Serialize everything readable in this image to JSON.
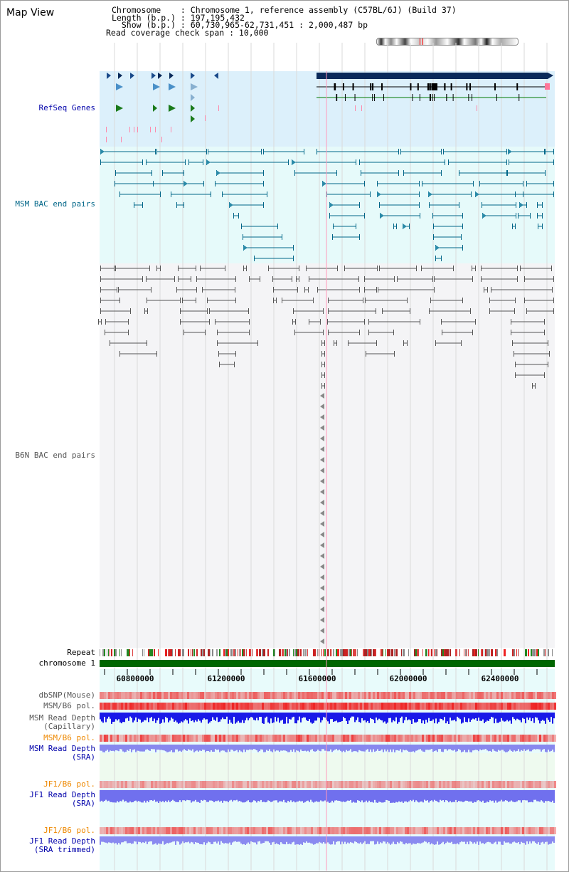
{
  "page": {
    "title": "Map View"
  },
  "header": {
    "chromosome_line": "Chromosome    : Chromosome 1, reference assembly (C57BL/6J) (Build 37)",
    "length_line": "Length (b.p.) : 197,195,432",
    "show_line": "  Show (b.p.) : 60,730,965-62,731,451 : 2,000,487 bp",
    "coverage_line": "Read coverage check span : 10,000"
  },
  "tracks": {
    "refseq": "RefSeq Genes",
    "msm_bac": "MSM BAC end pairs",
    "b6n_bac": "B6N BAC end pairs",
    "repeat": "Repeat",
    "chromosome": "chromosome 1",
    "dbsnp": "dbSNP(Mouse)",
    "msm_b6_pol": "MSM/B6 pol.",
    "msm_depth_cap": "MSM Read Depth",
    "msm_depth_cap_sub": "(Capillary)",
    "msm_b6_pol_sra": "MSM/B6 pol.",
    "msm_depth_sra": "MSM Read Depth",
    "msm_depth_sra_sub": "(SRA)",
    "jf1_pol": "JF1/B6 pol.",
    "jf1_depth": "JF1 Read Depth",
    "jf1_depth_sub": "(SRA)",
    "jf1_pol_trim": "JF1/B6 pol.",
    "jf1_depth_trim": "JF1 Read Depth",
    "jf1_depth_trim_sub": "(SRA trimmed)"
  },
  "axis": {
    "ticks": [
      "60800000",
      "61200000",
      "61600000",
      "62000000",
      "62400000"
    ]
  },
  "colors": {
    "refseq_label": "#0000aa",
    "msm_label": "#006688",
    "b6n_label": "#555555",
    "orange_label": "#ee8800",
    "blue_label": "#0000aa",
    "chromosome_bar": "#006600",
    "highlight": "#ff99bb"
  }
}
